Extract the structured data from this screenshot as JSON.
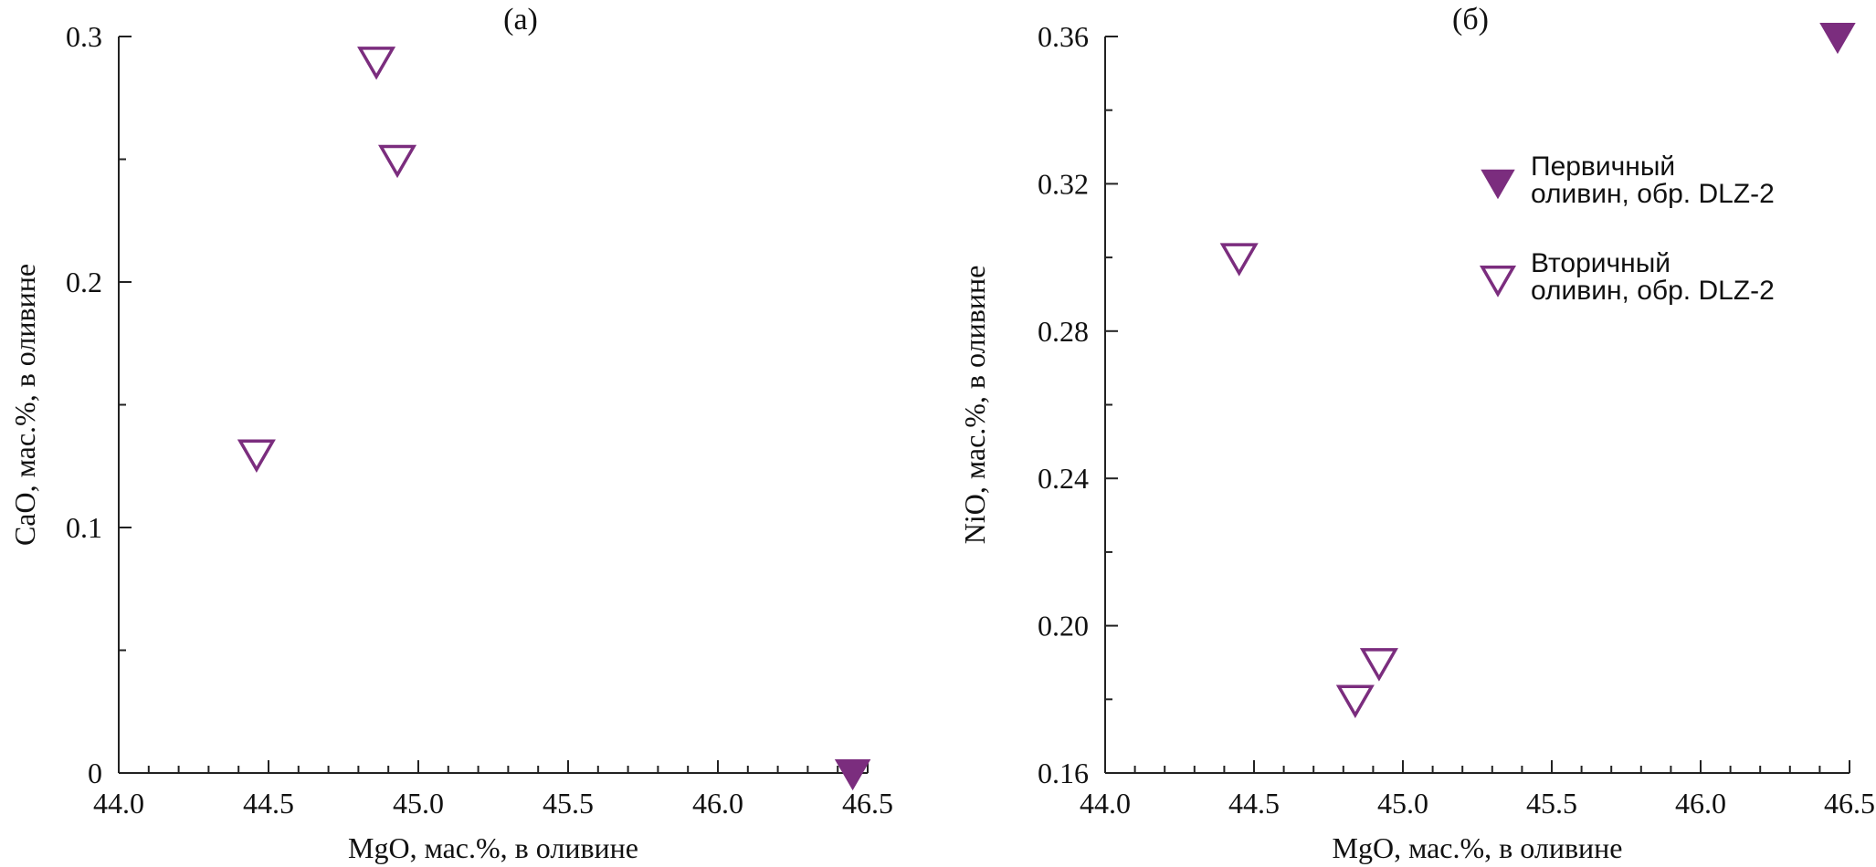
{
  "chart_data": [
    {
      "type": "scatter",
      "title": "(а)",
      "xlabel": "MgO, мас.%, в оливине",
      "ylabel": "CaO, мас.%, в оливине",
      "xlim": [
        44.0,
        46.5
      ],
      "ylim": [
        0,
        0.3
      ],
      "x_ticks": [
        "44.0",
        "44.5",
        "45.0",
        "45.5",
        "46.0",
        "46.5"
      ],
      "y_ticks": [
        "0",
        "0.1",
        "0.2",
        "0.3"
      ],
      "grid": false,
      "series": [
        {
          "name": "Первичный оливин, обр. DLZ-2",
          "marker": "filled-triangle-down",
          "color": "#7b2d7e",
          "points": [
            {
              "x": 46.45,
              "y": 0.0
            }
          ]
        },
        {
          "name": "Вторичный оливин, обр. DLZ-2",
          "marker": "open-triangle-down",
          "color": "#7b2d7e",
          "points": [
            {
              "x": 44.46,
              "y": 0.13
            },
            {
              "x": 44.86,
              "y": 0.29
            },
            {
              "x": 44.93,
              "y": 0.25
            }
          ]
        }
      ]
    },
    {
      "type": "scatter",
      "title": "(б)",
      "xlabel": "MgO, мас.%, в оливине",
      "ylabel": "NiO, мас.%, в оливине",
      "xlim": [
        44.0,
        46.5
      ],
      "ylim": [
        0.16,
        0.36
      ],
      "x_ticks": [
        "44.0",
        "44.5",
        "45.0",
        "45.5",
        "46.0",
        "46.5"
      ],
      "y_ticks": [
        "0.16",
        "0.20",
        "0.24",
        "0.28",
        "0.32",
        "0.36"
      ],
      "grid": false,
      "legend": {
        "placement": "top-right",
        "entries": [
          {
            "line1": "Первичный",
            "line2": "оливин, обр. DLZ-2",
            "marker": "filled-triangle-down"
          },
          {
            "line1": "Вторичный",
            "line2": "оливин, обр. DLZ-2",
            "marker": "open-triangle-down"
          }
        ]
      },
      "series": [
        {
          "name": "Первичный оливин, обр. DLZ-2",
          "marker": "filled-triangle-down",
          "color": "#7b2d7e",
          "points": [
            {
              "x": 46.46,
              "y": 0.36
            }
          ]
        },
        {
          "name": "Вторичный оливин, обр. DLZ-2",
          "marker": "open-triangle-down",
          "color": "#7b2d7e",
          "points": [
            {
              "x": 44.45,
              "y": 0.3
            },
            {
              "x": 44.84,
              "y": 0.18
            },
            {
              "x": 44.92,
              "y": 0.19
            }
          ]
        }
      ]
    }
  ]
}
